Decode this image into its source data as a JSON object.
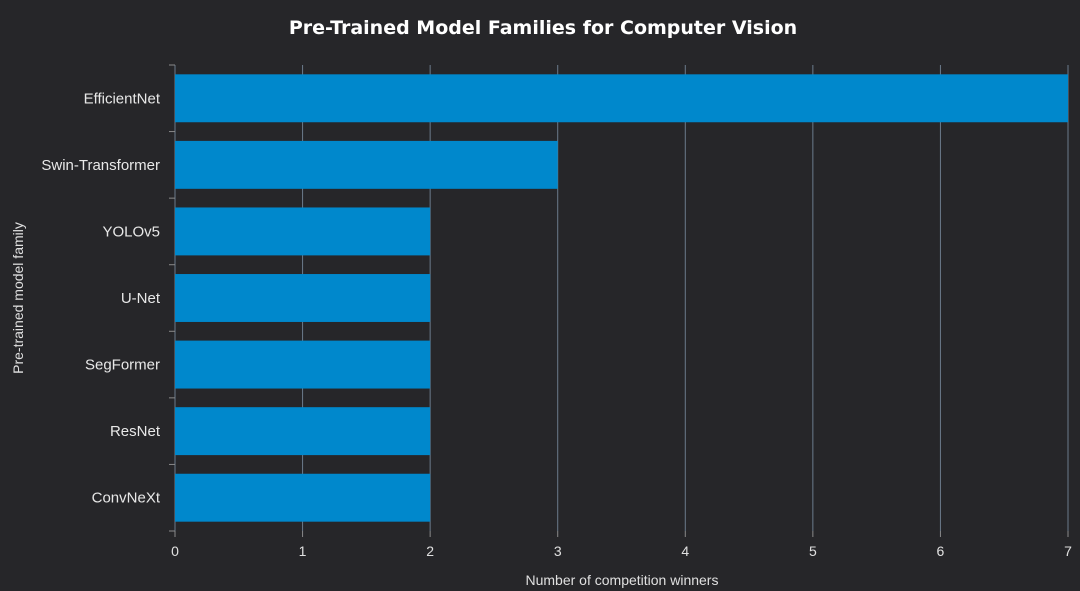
{
  "chart_data": {
    "type": "bar",
    "orientation": "horizontal",
    "title": "Pre-Trained Model Families for Computer Vision",
    "xlabel": "Number of competition winners",
    "ylabel": "Pre-trained model family",
    "categories": [
      "EfficientNet",
      "Swin-Transformer",
      "YOLOv5",
      "U-Net",
      "SegFormer",
      "ResNet",
      "ConvNeXt"
    ],
    "values": [
      7,
      3,
      2,
      2,
      2,
      2,
      2
    ],
    "xlim": [
      0,
      7
    ],
    "xticks": [
      "0",
      "1",
      "2",
      "3",
      "4",
      "5",
      "6",
      "7"
    ],
    "grid": true,
    "bar_color": "#0088cc",
    "background_color": "#262629",
    "grid_color": "#6b7b8c"
  }
}
